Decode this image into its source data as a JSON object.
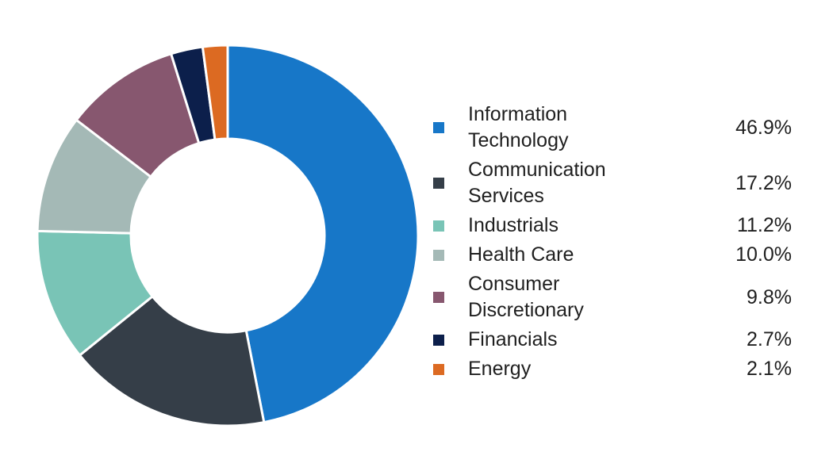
{
  "chart_data": {
    "type": "pie",
    "variant": "donut",
    "title": "",
    "legend_position": "right",
    "slices": [
      {
        "label_lines": [
          "Information",
          "Technology"
        ],
        "value": 46.9,
        "value_label": "46.9%",
        "color": "#1777c8"
      },
      {
        "label_lines": [
          "Communication",
          "Services"
        ],
        "value": 17.2,
        "value_label": "17.2%",
        "color": "#353e48"
      },
      {
        "label_lines": [
          "Industrials"
        ],
        "value": 11.2,
        "value_label": "11.2%",
        "color": "#79c4b6"
      },
      {
        "label_lines": [
          "Health Care"
        ],
        "value": 10.0,
        "value_label": "10.0%",
        "color": "#a4b9b6"
      },
      {
        "label_lines": [
          "Consumer",
          "Discretionary"
        ],
        "value": 9.8,
        "value_label": "9.8%",
        "color": "#87576f"
      },
      {
        "label_lines": [
          "Financials"
        ],
        "value": 2.7,
        "value_label": "2.7%",
        "color": "#0c1f4b"
      },
      {
        "label_lines": [
          "Energy"
        ],
        "value": 2.1,
        "value_label": "2.1%",
        "color": "#dc6a22"
      }
    ]
  }
}
